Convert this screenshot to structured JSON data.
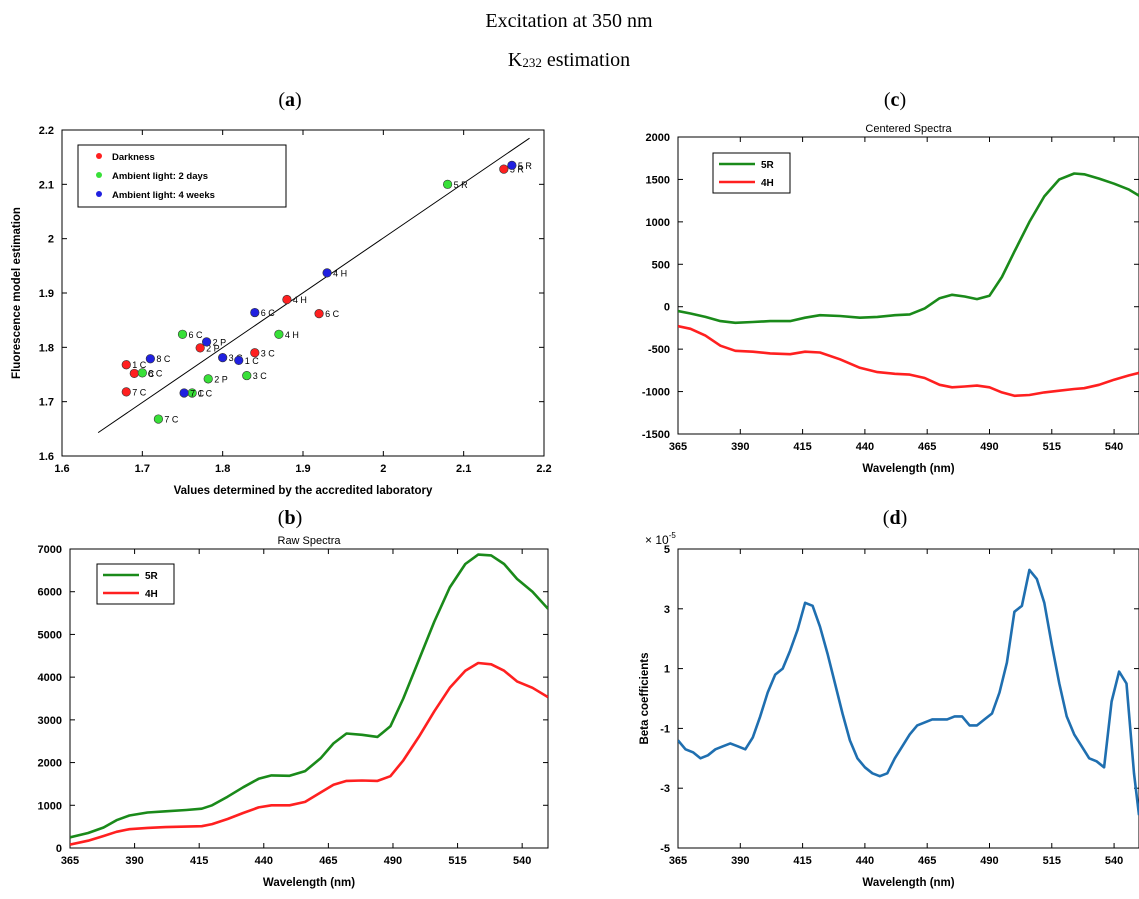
{
  "header": {
    "title_line1": "Excitation at 350 nm",
    "title_line2_main": "K",
    "title_line2_sub": "232",
    "title_line2_rest": " estimation"
  },
  "panel_labels": {
    "a": "a",
    "b": "b",
    "c": "c",
    "d": "d"
  },
  "chart_data": [
    {
      "id": "a",
      "type": "scatter",
      "title": "",
      "xlabel": "Values determined by the accredited laboratory",
      "ylabel": "Fluorescence model estimation",
      "xlim": [
        1.6,
        2.2
      ],
      "ylim": [
        1.6,
        2.2
      ],
      "xticks": [
        1.6,
        1.7,
        1.8,
        1.9,
        2,
        2.1,
        2.2
      ],
      "yticks": [
        1.6,
        1.7,
        1.8,
        1.9,
        2,
        2.1,
        2.2
      ],
      "xtick_labels": [
        "1.6",
        "1.7",
        "1.8",
        "1.9",
        "2",
        "2.1",
        "2.2"
      ],
      "ytick_labels": [
        "1.6",
        "1.7",
        "1.8",
        "1.9",
        "2",
        "2.1",
        "2.2"
      ],
      "grid": false,
      "legend_position": "top-left",
      "fit_line": {
        "x": [
          1.645,
          2.182
        ],
        "y": [
          1.643,
          2.185
        ]
      },
      "series": [
        {
          "name": "Darkness",
          "color": "#ff2020",
          "points": [
            {
              "x": 1.68,
              "y": 1.768,
              "label": "1 C"
            },
            {
              "x": 1.69,
              "y": 1.752,
              "label": "8 C"
            },
            {
              "x": 1.68,
              "y": 1.718,
              "label": "7 C"
            },
            {
              "x": 1.772,
              "y": 1.799,
              "label": "2 P"
            },
            {
              "x": 1.84,
              "y": 1.79,
              "label": "3 C"
            },
            {
              "x": 1.88,
              "y": 1.888,
              "label": "4 H"
            },
            {
              "x": 1.92,
              "y": 1.862,
              "label": "6 C"
            },
            {
              "x": 2.15,
              "y": 2.128,
              "label": "5 R"
            }
          ]
        },
        {
          "name": "Ambient light: 2 days",
          "color": "#38e038",
          "points": [
            {
              "x": 1.7,
              "y": 1.753,
              "label": "8 C"
            },
            {
              "x": 1.75,
              "y": 1.824,
              "label": "6 C"
            },
            {
              "x": 1.72,
              "y": 1.668,
              "label": "7 C"
            },
            {
              "x": 1.762,
              "y": 1.716,
              "label": "1 C"
            },
            {
              "x": 1.782,
              "y": 1.742,
              "label": "2 P"
            },
            {
              "x": 1.83,
              "y": 1.748,
              "label": "3 C"
            },
            {
              "x": 1.87,
              "y": 1.824,
              "label": "4 H"
            },
            {
              "x": 2.08,
              "y": 2.1,
              "label": "5 R"
            }
          ]
        },
        {
          "name": "Ambient light: 4 weeks",
          "color": "#2020e0",
          "points": [
            {
              "x": 1.71,
              "y": 1.779,
              "label": "8 C"
            },
            {
              "x": 1.752,
              "y": 1.716,
              "label": "7 C"
            },
            {
              "x": 1.78,
              "y": 1.81,
              "label": "2 P"
            },
            {
              "x": 1.8,
              "y": 1.781,
              "label": "3 C"
            },
            {
              "x": 1.82,
              "y": 1.776,
              "label": "1 C"
            },
            {
              "x": 1.84,
              "y": 1.864,
              "label": "6 C"
            },
            {
              "x": 1.93,
              "y": 1.937,
              "label": "4 H"
            },
            {
              "x": 2.16,
              "y": 2.135,
              "label": "5 R"
            }
          ]
        }
      ]
    },
    {
      "id": "b",
      "type": "line",
      "title": "Raw Spectra",
      "xlabel": "Wavelength (nm)",
      "ylabel": "",
      "xlim": [
        365,
        550
      ],
      "ylim": [
        0,
        7000
      ],
      "xticks": [
        365,
        390,
        415,
        440,
        465,
        490,
        515,
        540
      ],
      "yticks": [
        0,
        1000,
        2000,
        3000,
        4000,
        5000,
        6000,
        7000
      ],
      "xtick_labels": [
        "365",
        "390",
        "415",
        "440",
        "465",
        "490",
        "515",
        "540"
      ],
      "ytick_labels": [
        "0",
        "1000",
        "2000",
        "3000",
        "4000",
        "5000",
        "6000",
        "7000"
      ],
      "grid": false,
      "legend_position": "top-left",
      "series": [
        {
          "name": "5R",
          "color": "#1a8a1a",
          "x": [
            365,
            372,
            378,
            383,
            388,
            395,
            402,
            410,
            416,
            420,
            426,
            432,
            438,
            443,
            450,
            456,
            462,
            467,
            472,
            478,
            484,
            489,
            494,
            500,
            506,
            512,
            518,
            523,
            528,
            533,
            538,
            544,
            550
          ],
          "y": [
            250,
            350,
            480,
            650,
            760,
            830,
            860,
            890,
            920,
            1000,
            1200,
            1420,
            1620,
            1700,
            1690,
            1800,
            2100,
            2450,
            2680,
            2650,
            2600,
            2850,
            3500,
            4400,
            5300,
            6100,
            6650,
            6870,
            6850,
            6650,
            6300,
            6000,
            5600
          ]
        },
        {
          "name": "4H",
          "color": "#ff2020",
          "x": [
            365,
            372,
            378,
            383,
            388,
            395,
            402,
            410,
            416,
            420,
            426,
            432,
            438,
            443,
            450,
            456,
            462,
            467,
            472,
            478,
            484,
            489,
            494,
            500,
            506,
            512,
            518,
            523,
            528,
            533,
            538,
            544,
            550
          ],
          "y": [
            80,
            170,
            280,
            380,
            440,
            470,
            490,
            500,
            510,
            560,
            680,
            820,
            950,
            1000,
            1000,
            1080,
            1300,
            1480,
            1570,
            1580,
            1570,
            1680,
            2050,
            2600,
            3200,
            3750,
            4150,
            4330,
            4300,
            4150,
            3900,
            3750,
            3530
          ]
        }
      ]
    },
    {
      "id": "c",
      "type": "line",
      "title": "Centered Spectra",
      "xlabel": "Wavelength (nm)",
      "ylabel": "",
      "xlim": [
        365,
        550
      ],
      "ylim": [
        -1500,
        2000
      ],
      "xticks": [
        365,
        390,
        415,
        440,
        465,
        490,
        515,
        540
      ],
      "yticks": [
        -1500,
        -1000,
        -500,
        0,
        500,
        1000,
        1500,
        2000
      ],
      "xtick_labels": [
        "365",
        "390",
        "415",
        "440",
        "465",
        "490",
        "515",
        "540"
      ],
      "ytick_labels": [
        "-1500",
        "-1000",
        "-500",
        "0",
        "500",
        "1000",
        "1500",
        "2000"
      ],
      "grid": false,
      "legend_position": "top-left",
      "series": [
        {
          "name": "5R",
          "color": "#1a8a1a",
          "x": [
            365,
            370,
            376,
            382,
            388,
            395,
            402,
            410,
            416,
            422,
            430,
            438,
            445,
            452,
            458,
            464,
            470,
            475,
            480,
            485,
            490,
            495,
            500,
            506,
            512,
            518,
            524,
            528,
            534,
            540,
            546,
            550
          ],
          "y": [
            -50,
            -80,
            -120,
            -170,
            -190,
            -180,
            -170,
            -170,
            -130,
            -100,
            -110,
            -130,
            -120,
            -100,
            -90,
            -20,
            100,
            140,
            120,
            90,
            130,
            350,
            650,
            1000,
            1300,
            1500,
            1570,
            1560,
            1510,
            1450,
            1380,
            1310
          ]
        },
        {
          "name": "4H",
          "color": "#ff2020",
          "x": [
            365,
            370,
            376,
            382,
            388,
            395,
            402,
            410,
            416,
            422,
            430,
            438,
            445,
            452,
            458,
            464,
            470,
            475,
            480,
            485,
            490,
            495,
            500,
            506,
            512,
            518,
            524,
            528,
            534,
            540,
            546,
            550
          ],
          "y": [
            -230,
            -260,
            -340,
            -460,
            -520,
            -530,
            -550,
            -560,
            -530,
            -540,
            -620,
            -720,
            -770,
            -790,
            -800,
            -840,
            -920,
            -950,
            -940,
            -930,
            -950,
            -1010,
            -1050,
            -1040,
            -1010,
            -990,
            -970,
            -960,
            -920,
            -860,
            -810,
            -780
          ]
        }
      ]
    },
    {
      "id": "d",
      "type": "line",
      "title": "",
      "xlabel": "Wavelength (nm)",
      "ylabel": "Beta coefficients",
      "y_multiplier_label": "× 10",
      "y_multiplier_exp": "-5",
      "xlim": [
        365,
        550
      ],
      "ylim": [
        -5,
        5
      ],
      "xticks": [
        365,
        390,
        415,
        440,
        465,
        490,
        515,
        540
      ],
      "yticks": [
        -5,
        -3,
        -1,
        1,
        3,
        5
      ],
      "xtick_labels": [
        "365",
        "390",
        "415",
        "440",
        "465",
        "490",
        "515",
        "540"
      ],
      "ytick_labels": [
        "-5",
        "-3",
        "-1",
        "1",
        "3",
        "5"
      ],
      "grid": false,
      "legend_position": "none",
      "series": [
        {
          "name": "",
          "color": "#1f6fb0",
          "x": [
            365,
            368,
            371,
            374,
            377,
            380,
            383,
            386,
            389,
            392,
            395,
            398,
            401,
            404,
            407,
            410,
            413,
            416,
            419,
            422,
            425,
            428,
            431,
            434,
            437,
            440,
            443,
            446,
            449,
            452,
            455,
            458,
            461,
            464,
            467,
            470,
            473,
            476,
            479,
            482,
            485,
            488,
            491,
            494,
            497,
            500,
            503,
            506,
            509,
            512,
            515,
            518,
            521,
            524,
            527,
            530,
            533,
            536,
            539,
            542,
            545,
            548,
            550
          ],
          "y": [
            -1.4,
            -1.7,
            -1.8,
            -2.0,
            -1.9,
            -1.7,
            -1.6,
            -1.5,
            -1.6,
            -1.7,
            -1.3,
            -0.6,
            0.2,
            0.8,
            1.0,
            1.6,
            2.3,
            3.2,
            3.1,
            2.4,
            1.5,
            0.5,
            -0.5,
            -1.4,
            -2.0,
            -2.3,
            -2.5,
            -2.6,
            -2.5,
            -2.0,
            -1.6,
            -1.2,
            -0.9,
            -0.8,
            -0.7,
            -0.7,
            -0.7,
            -0.6,
            -0.6,
            -0.9,
            -0.9,
            -0.7,
            -0.5,
            0.2,
            1.2,
            2.9,
            3.1,
            4.3,
            4.0,
            3.2,
            1.8,
            0.5,
            -0.6,
            -1.2,
            -1.6,
            -2.0,
            -2.1,
            -2.3,
            -0.1,
            0.9,
            0.5,
            -2.5,
            -3.9
          ]
        }
      ]
    }
  ]
}
